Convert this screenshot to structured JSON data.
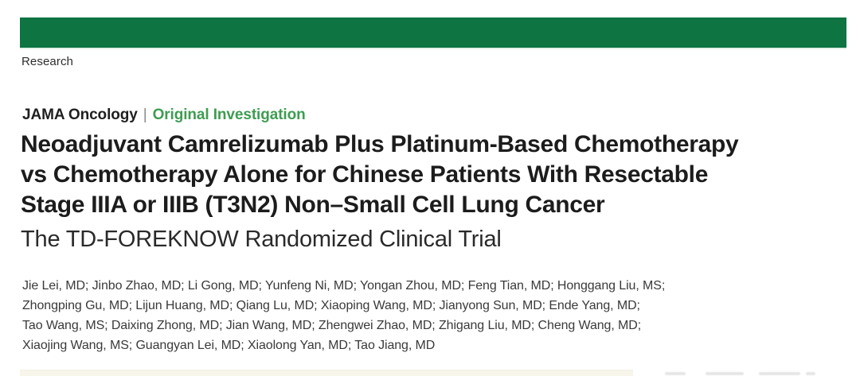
{
  "masthead": {
    "bar_color": "#0d7442",
    "section_label": "Research"
  },
  "article_header": {
    "journal": "JAMA Oncology",
    "separator": "|",
    "article_type": "Original Investigation",
    "article_type_color": "#3f9c52",
    "title_lines": [
      "Neoadjuvant Camrelizumab Plus Platinum-Based Chemotherapy",
      "vs Chemotherapy Alone for Chinese Patients With Resectable",
      "Stage IIIA or IIIB (T3N2) Non–Small Cell Lung Cancer"
    ],
    "subtitle": "The TD-FOREKNOW Randomized Clinical Trial"
  },
  "authors": {
    "lines": [
      "Jie Lei, MD; Jinbo Zhao, MD; Li Gong, MD; Yunfeng Ni, MD; Yongan Zhou, MD; Feng Tian, MD; Honggang Liu, MS;",
      "Zhongping Gu, MD; Lijun Huang, MD; Qiang Lu, MD; Xiaoping Wang, MD; Jianyong Sun, MD; Ende Yang, MD;",
      "Tao Wang, MS; Daixing Zhong, MD; Jian Wang, MD; Zhengwei Zhao, MD; Zhigang Liu, MD; Cheng Wang, MD;",
      "Xiaojing Wang, MS; Guangyan Lei, MD; Xiaolong Yan, MD; Tao Jiang, MD"
    ]
  }
}
